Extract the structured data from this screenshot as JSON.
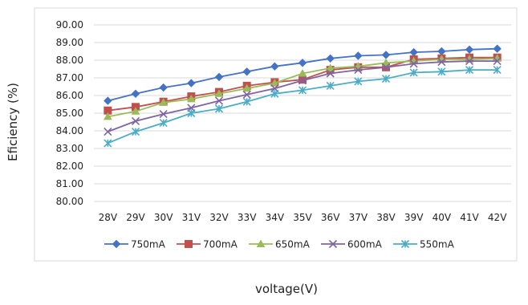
{
  "chart_data": {
    "type": "line",
    "xlabel": "voltage(V)",
    "ylabel": "Eficiency (%)",
    "categories": [
      "28V",
      "29V",
      "30V",
      "31V",
      "32V",
      "33V",
      "34V",
      "35V",
      "36V",
      "37V",
      "38V",
      "39V",
      "40V",
      "41V",
      "42V"
    ],
    "ylim": [
      80,
      90
    ],
    "yticks": [
      "80.00",
      "81.00",
      "82.00",
      "83.00",
      "84.00",
      "85.00",
      "86.00",
      "87.00",
      "88.00",
      "89.00",
      "90.00"
    ],
    "grid": true,
    "legend_position": "bottom",
    "series": [
      {
        "name": "750mA",
        "color": "#4472C4",
        "marker": "diamond",
        "values": [
          85.7,
          86.1,
          86.45,
          86.7,
          87.05,
          87.35,
          87.65,
          87.85,
          88.1,
          88.25,
          88.3,
          88.45,
          88.5,
          88.6,
          88.65
        ]
      },
      {
        "name": "700mA",
        "color": "#C0504D",
        "marker": "square",
        "values": [
          85.15,
          85.35,
          85.65,
          85.95,
          86.2,
          86.55,
          86.75,
          86.9,
          87.45,
          87.6,
          87.6,
          88.05,
          88.1,
          88.15,
          88.15
        ]
      },
      {
        "name": "650mA",
        "color": "#9BBB59",
        "marker": "triangle",
        "values": [
          84.8,
          85.1,
          85.6,
          85.8,
          86.1,
          86.4,
          86.7,
          87.25,
          87.55,
          87.65,
          87.85,
          87.95,
          88.05,
          88.05,
          88.1
        ]
      },
      {
        "name": "600mA",
        "color": "#8064A2",
        "marker": "x",
        "values": [
          83.95,
          84.55,
          84.95,
          85.3,
          85.7,
          86.05,
          86.4,
          86.85,
          87.25,
          87.45,
          87.6,
          87.8,
          87.9,
          87.95,
          87.95
        ]
      },
      {
        "name": "550mA",
        "color": "#4BACC6",
        "marker": "star",
        "values": [
          83.3,
          83.95,
          84.45,
          85.0,
          85.25,
          85.65,
          86.1,
          86.3,
          86.55,
          86.8,
          86.95,
          87.3,
          87.35,
          87.45,
          87.45
        ]
      }
    ]
  }
}
